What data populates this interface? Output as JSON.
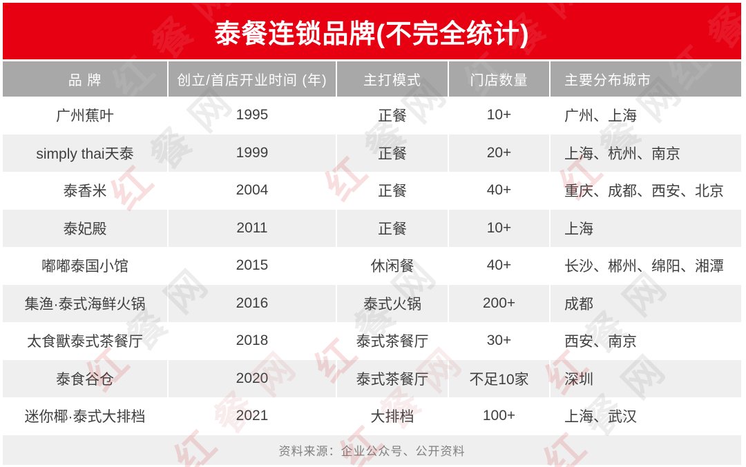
{
  "title": "泰餐连锁品牌(不完全统计)",
  "colors": {
    "brand_red": "#e60012",
    "header_gray": "#a8a8a8",
    "row_alt_gray": "#efefef",
    "body_text": "#3f3f3f",
    "footer_text": "#7f7f7f"
  },
  "table": {
    "headers": [
      "品  牌",
      "创立/首店开业时间 (年)",
      "主打模式",
      "门店数量",
      "主要分布城市"
    ],
    "rows": [
      [
        "广州蕉叶",
        "1995",
        "正餐",
        "10+",
        "广州、上海"
      ],
      [
        "simply thai天泰",
        "1999",
        "正餐",
        "20+",
        "上海、杭州、南京"
      ],
      [
        "泰香米",
        "2004",
        "正餐",
        "40+",
        "重庆、成都、西安、北京"
      ],
      [
        "泰妃殿",
        "2011",
        "正餐",
        "10+",
        "上海"
      ],
      [
        "嘟嘟泰国小馆",
        "2015",
        "休闲餐",
        "40+",
        "长沙、郴州、绵阳、湘潭"
      ],
      [
        "集渔·泰式海鲜火锅",
        "2016",
        "泰式火锅",
        "200+",
        "成都"
      ],
      [
        "太食獸泰式茶餐厅",
        "2018",
        "泰式茶餐厅",
        "30+",
        "西安、南京"
      ],
      [
        "泰食谷仓",
        "2020",
        "泰式茶餐厅",
        "不足10家",
        "深圳"
      ],
      [
        "迷你椰·泰式大排档",
        "2021",
        "大排档",
        "100+",
        "上海、武汉"
      ]
    ]
  },
  "footer": {
    "source": "资料来源：企业公众号、公开资料"
  },
  "watermark": {
    "text": "红餐网"
  }
}
